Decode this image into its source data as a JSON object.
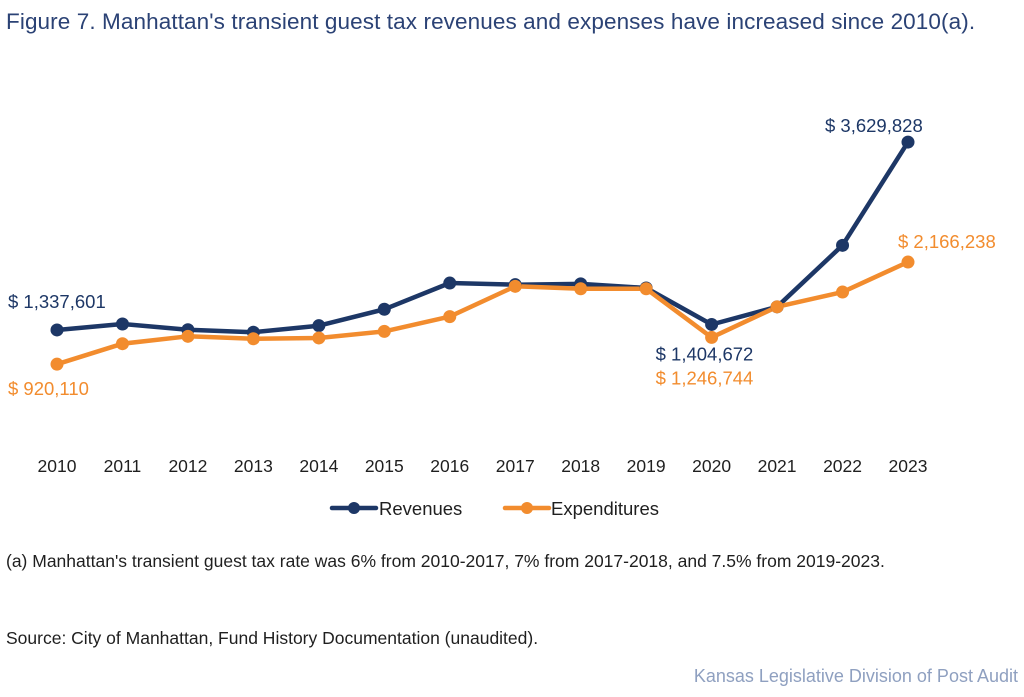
{
  "title": "Figure 7. Manhattan's transient guest tax revenues and expenses have increased since 2010(a).",
  "footnote": "(a) Manhattan's transient guest tax rate was 6% from 2010-2017, 7% from 2017-2018, and 7.5% from 2019-2023.",
  "source": "Source: City of Manhattan, Fund History Documentation (unaudited).",
  "credit": "Kansas Legislative Division of Post Audit",
  "colors": {
    "revenues": "#1d3766",
    "expenditures": "#f28c2e"
  },
  "chart_data": {
    "type": "line",
    "title": "Figure 7. Manhattan's transient guest tax revenues and expenses have increased since 2010(a).",
    "xlabel": "",
    "ylabel": "",
    "categories": [
      "2010",
      "2011",
      "2012",
      "2013",
      "2014",
      "2015",
      "2016",
      "2017",
      "2018",
      "2019",
      "2020",
      "2021",
      "2022",
      "2023"
    ],
    "ylim": [
      0,
      3800000
    ],
    "grid": false,
    "y_axis_visible": false,
    "legend": "bottom-center",
    "series": [
      {
        "name": "Revenues",
        "color": "#1d3766",
        "values": [
          1337601,
          1410000,
          1340000,
          1310000,
          1390000,
          1590000,
          1910000,
          1890000,
          1900000,
          1850000,
          1404672,
          1620000,
          2370000,
          3629828
        ],
        "labels": [
          {
            "index": 0,
            "text": "$ 1,337,601"
          },
          {
            "index": 10,
            "text": "$ 1,404,672"
          },
          {
            "index": 13,
            "text": "$ 3,629,828"
          }
        ]
      },
      {
        "name": "Expenditures",
        "color": "#f28c2e",
        "values": [
          920110,
          1170000,
          1260000,
          1230000,
          1240000,
          1320000,
          1500000,
          1870000,
          1840000,
          1840000,
          1246744,
          1620000,
          1800000,
          2166238
        ],
        "labels": [
          {
            "index": 0,
            "text": "$ 920,110"
          },
          {
            "index": 10,
            "text": "$ 1,246,744"
          },
          {
            "index": 13,
            "text": "$ 2,166,238"
          }
        ]
      }
    ]
  }
}
